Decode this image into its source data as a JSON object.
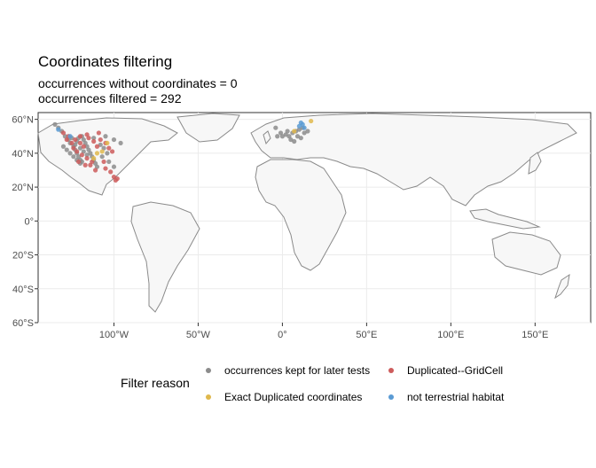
{
  "chart_data": {
    "type": "scatter",
    "title": "Coordinates filtering",
    "subtitle_lines": [
      "occurrences without coordinates = 0",
      "occurrences filtered =  292"
    ],
    "xlabel": "",
    "ylabel": "",
    "xlim": [
      -145,
      183
    ],
    "ylim": [
      -60,
      64
    ],
    "x_ticks": [
      {
        "value": -100,
        "label": "100°W"
      },
      {
        "value": -50,
        "label": "50°W"
      },
      {
        "value": 0,
        "label": "0°"
      },
      {
        "value": 50,
        "label": "50°E"
      },
      {
        "value": 100,
        "label": "100°E"
      },
      {
        "value": 150,
        "label": "150°E"
      }
    ],
    "y_ticks": [
      {
        "value": 60,
        "label": "60°N"
      },
      {
        "value": 40,
        "label": "40°N"
      },
      {
        "value": 20,
        "label": "20°N"
      },
      {
        "value": 0,
        "label": "0°"
      },
      {
        "value": -20,
        "label": "20°S"
      },
      {
        "value": -40,
        "label": "40°S"
      },
      {
        "value": -60,
        "label": "60°S"
      }
    ],
    "grid": true,
    "legend": {
      "title": "Filter reason",
      "position": "bottom",
      "items": [
        {
          "name": "occurrences kept for later tests",
          "color": "#8c8c8c"
        },
        {
          "name": "Duplicated--GridCell",
          "color": "#cd5c5c"
        },
        {
          "name": "Exact Duplicated coordinates",
          "color": "#e0b84c"
        },
        {
          "name": "not terrestrial habitat",
          "color": "#5a9bd4"
        }
      ]
    },
    "series": [
      {
        "name": "occurrences kept for later tests",
        "color": "#8c8c8c",
        "points": [
          [
            -135,
            57
          ],
          [
            -133,
            55
          ],
          [
            -131,
            53
          ],
          [
            -129,
            50
          ],
          [
            -127,
            48
          ],
          [
            -126,
            46
          ],
          [
            -124,
            44
          ],
          [
            -123,
            42
          ],
          [
            -122,
            40
          ],
          [
            -121,
            38
          ],
          [
            -120,
            36
          ],
          [
            -119,
            35
          ],
          [
            -125,
            49
          ],
          [
            -122,
            47
          ],
          [
            -121,
            49
          ],
          [
            -118,
            48
          ],
          [
            -117,
            46
          ],
          [
            -116,
            44
          ],
          [
            -115,
            42
          ],
          [
            -114,
            40
          ],
          [
            -113,
            38
          ],
          [
            -112,
            36
          ],
          [
            -111,
            34
          ],
          [
            -110,
            32
          ],
          [
            -123,
            45
          ],
          [
            -120,
            43
          ],
          [
            -118,
            41
          ],
          [
            -116,
            39
          ],
          [
            -119,
            50
          ],
          [
            -112,
            49
          ],
          [
            -108,
            45
          ],
          [
            -106,
            43
          ],
          [
            -104,
            40
          ],
          [
            -107,
            38
          ],
          [
            -103,
            35
          ],
          [
            -100,
            32
          ],
          [
            -105,
            50
          ],
          [
            -100,
            48
          ],
          [
            -96,
            46
          ],
          [
            -130,
            44
          ],
          [
            -128,
            42
          ],
          [
            -126,
            40
          ],
          [
            -124,
            38
          ],
          [
            -122,
            36
          ],
          [
            -120,
            34
          ],
          [
            2,
            51
          ],
          [
            4,
            50
          ],
          [
            6,
            52
          ],
          [
            8,
            53
          ],
          [
            10,
            54
          ],
          [
            12,
            55
          ],
          [
            -3,
            50
          ],
          [
            -4,
            55
          ],
          [
            5,
            48
          ],
          [
            7,
            47
          ],
          [
            9,
            50
          ],
          [
            11,
            49
          ],
          [
            13,
            52
          ],
          [
            15,
            53
          ],
          [
            3,
            53
          ],
          [
            -1,
            52
          ],
          [
            0,
            50
          ]
        ]
      },
      {
        "name": "Duplicated--GridCell",
        "color": "#cd5c5c",
        "points": [
          [
            -130,
            52
          ],
          [
            -127,
            50
          ],
          [
            -123,
            48
          ],
          [
            -120,
            46
          ],
          [
            -118,
            44
          ],
          [
            -115,
            49
          ],
          [
            -112,
            47
          ],
          [
            -110,
            44
          ],
          [
            -122,
            41
          ],
          [
            -119,
            39
          ],
          [
            -116,
            37
          ],
          [
            -113,
            35
          ],
          [
            -108,
            48
          ],
          [
            -105,
            46
          ],
          [
            -103,
            43
          ],
          [
            -101,
            41
          ],
          [
            -117,
            33
          ],
          [
            -111,
            30
          ],
          [
            -105,
            31
          ],
          [
            -100,
            26
          ],
          [
            -98,
            25
          ],
          [
            -125,
            46
          ],
          [
            -128,
            48
          ],
          [
            -116,
            51
          ],
          [
            -109,
            52
          ],
          [
            -121,
            35
          ],
          [
            -114,
            33
          ],
          [
            -106,
            35
          ],
          [
            -102,
            29
          ],
          [
            -99,
            24
          ],
          [
            -124,
            43
          ],
          [
            -120,
            50
          ]
        ]
      },
      {
        "name": "Exact Duplicated coordinates",
        "color": "#e0b84c",
        "points": [
          [
            -110,
            40
          ],
          [
            -107,
            41
          ],
          [
            -112,
            37
          ],
          [
            17,
            59
          ],
          [
            7,
            53
          ],
          [
            -104,
            46
          ]
        ]
      },
      {
        "name": "not terrestrial habitat",
        "color": "#5a9bd4",
        "points": [
          [
            12,
            57
          ],
          [
            10,
            56
          ],
          [
            13,
            55
          ],
          [
            11,
            58
          ],
          [
            -126,
            50
          ],
          [
            -133,
            54
          ]
        ]
      }
    ]
  }
}
